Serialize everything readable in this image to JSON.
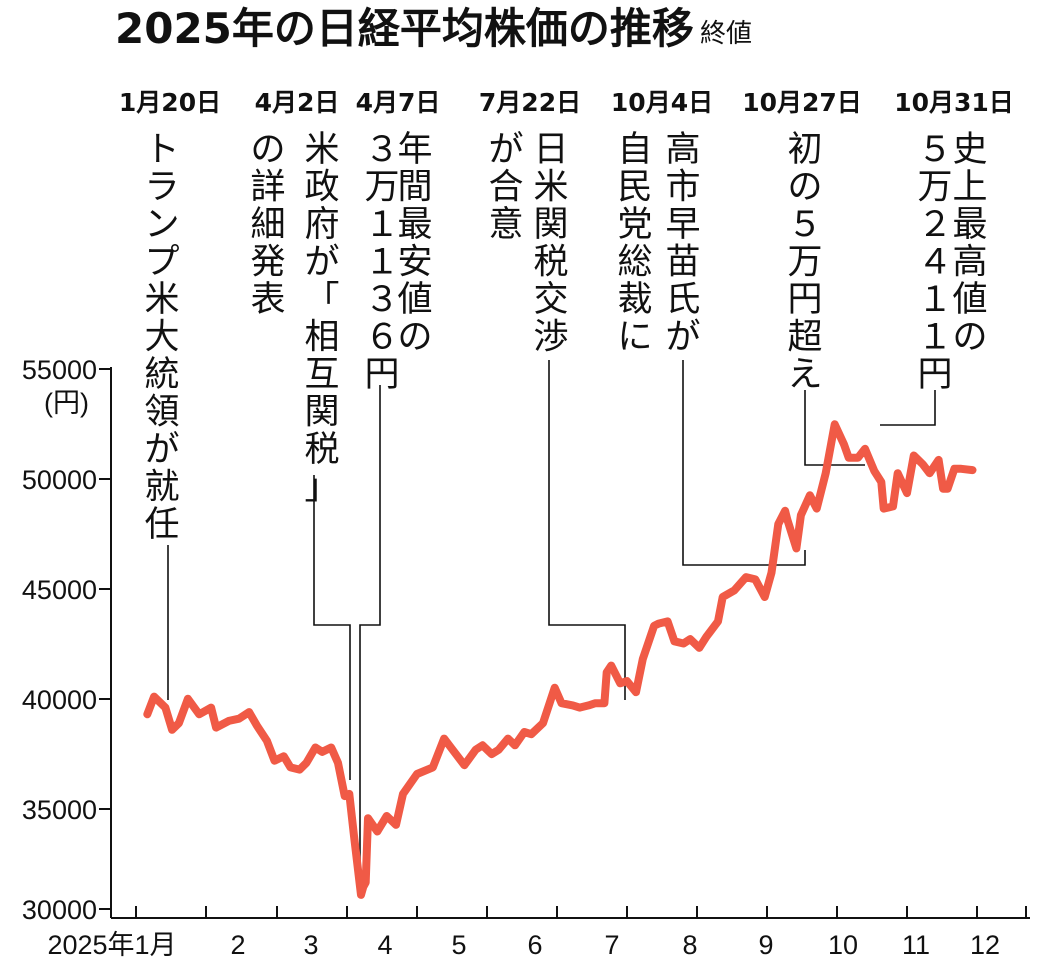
{
  "chart_data": {
    "type": "line",
    "title": "2025年の日経平均株価の推移",
    "subtitle": "終値",
    "unit": "(円)",
    "ylim": [
      30000,
      55000
    ],
    "y_ticks": [
      "55000",
      "50000",
      "45000",
      "40000",
      "35000",
      "30000"
    ],
    "x_ticks": [
      "2025年1月",
      "2",
      "3",
      "4",
      "5",
      "6",
      "7",
      "8",
      "9",
      "10",
      "11",
      "12"
    ],
    "line_color": "#f05a46",
    "grid": false,
    "series": [
      {
        "values": [
          [
            "2025-01-06",
            39300
          ],
          [
            "2025-01-09",
            40100
          ],
          [
            "2025-01-14",
            39600
          ],
          [
            "2025-01-17",
            38600
          ],
          [
            "2025-01-20",
            38900
          ],
          [
            "2025-01-24",
            40000
          ],
          [
            "2025-01-29",
            39300
          ],
          [
            "2025-02-03",
            39600
          ],
          [
            "2025-02-05",
            38700
          ],
          [
            "2025-02-10",
            39000
          ],
          [
            "2025-02-14",
            39100
          ],
          [
            "2025-02-18",
            39400
          ],
          [
            "2025-02-21",
            38800
          ],
          [
            "2025-02-25",
            38100
          ],
          [
            "2025-02-28",
            37200
          ],
          [
            "2025-03-04",
            37400
          ],
          [
            "2025-03-07",
            36900
          ],
          [
            "2025-03-11",
            36800
          ],
          [
            "2025-03-14",
            37100
          ],
          [
            "2025-03-18",
            37800
          ],
          [
            "2025-03-21",
            37600
          ],
          [
            "2025-03-25",
            37800
          ],
          [
            "2025-03-28",
            37100
          ],
          [
            "2025-03-31",
            35600
          ],
          [
            "2025-04-02",
            35700
          ],
          [
            "2025-04-04",
            33800
          ],
          [
            "2025-04-07",
            31136
          ],
          [
            "2025-04-08",
            31500
          ],
          [
            "2025-04-09",
            31700
          ],
          [
            "2025-04-10",
            34600
          ],
          [
            "2025-04-14",
            34000
          ],
          [
            "2025-04-18",
            34700
          ],
          [
            "2025-04-22",
            34300
          ],
          [
            "2025-04-25",
            35700
          ],
          [
            "2025-05-01",
            36600
          ],
          [
            "2025-05-08",
            36900
          ],
          [
            "2025-05-13",
            38200
          ],
          [
            "2025-05-16",
            37800
          ],
          [
            "2025-05-22",
            37000
          ],
          [
            "2025-05-27",
            37700
          ],
          [
            "2025-05-30",
            37900
          ],
          [
            "2025-06-03",
            37500
          ],
          [
            "2025-06-06",
            37700
          ],
          [
            "2025-06-10",
            38200
          ],
          [
            "2025-06-13",
            37900
          ],
          [
            "2025-06-17",
            38500
          ],
          [
            "2025-06-20",
            38400
          ],
          [
            "2025-06-25",
            38900
          ],
          [
            "2025-06-30",
            40500
          ],
          [
            "2025-07-03",
            39800
          ],
          [
            "2025-07-08",
            39700
          ],
          [
            "2025-07-11",
            39600
          ],
          [
            "2025-07-15",
            39700
          ],
          [
            "2025-07-18",
            39800
          ],
          [
            "2025-07-22",
            39800
          ],
          [
            "2025-07-23",
            41200
          ],
          [
            "2025-07-25",
            41500
          ],
          [
            "2025-07-29",
            40700
          ],
          [
            "2025-08-01",
            40800
          ],
          [
            "2025-08-05",
            40300
          ],
          [
            "2025-08-08",
            41800
          ],
          [
            "2025-08-13",
            43300
          ],
          [
            "2025-08-15",
            43400
          ],
          [
            "2025-08-19",
            43500
          ],
          [
            "2025-08-22",
            42600
          ],
          [
            "2025-08-26",
            42500
          ],
          [
            "2025-08-29",
            42700
          ],
          [
            "2025-09-02",
            42300
          ],
          [
            "2025-09-05",
            42800
          ],
          [
            "2025-09-10",
            43500
          ],
          [
            "2025-09-12",
            44600
          ],
          [
            "2025-09-17",
            44900
          ],
          [
            "2025-09-22",
            45500
          ],
          [
            "2025-09-26",
            45400
          ],
          [
            "2025-09-30",
            44600
          ],
          [
            "2025-10-03",
            45700
          ],
          [
            "2025-10-06",
            47900
          ],
          [
            "2025-10-09",
            48500
          ],
          [
            "2025-10-10",
            48100
          ],
          [
            "2025-10-14",
            46800
          ],
          [
            "2025-10-16",
            48300
          ],
          [
            "2025-10-20",
            49200
          ],
          [
            "2025-10-23",
            48600
          ],
          [
            "2025-10-27",
            50200
          ],
          [
            "2025-10-29",
            51300
          ],
          [
            "2025-10-31",
            52411
          ],
          [
            "2025-11-04",
            51500
          ],
          [
            "2025-11-06",
            50900
          ],
          [
            "2025-11-10",
            50900
          ],
          [
            "2025-11-13",
            51300
          ],
          [
            "2025-11-17",
            50300
          ],
          [
            "2025-11-20",
            49800
          ],
          [
            "2025-11-21",
            48600
          ],
          [
            "2025-11-25",
            48700
          ],
          [
            "2025-11-27",
            50200
          ],
          [
            "2025-12-01",
            49300
          ],
          [
            "2025-12-04",
            51000
          ],
          [
            "2025-12-08",
            50600
          ],
          [
            "2025-12-11",
            50200
          ],
          [
            "2025-12-15",
            50800
          ],
          [
            "2025-12-17",
            49500
          ],
          [
            "2025-12-19",
            49500
          ],
          [
            "2025-12-22",
            50400
          ],
          [
            "2025-12-25",
            50400
          ],
          [
            "2025-12-30",
            50339
          ]
        ]
      }
    ],
    "annotations": [
      {
        "date_label": "1月20日",
        "lines": [
          "トランプ米大統領が就任"
        ],
        "date": "2025-01-20"
      },
      {
        "date_label": "4月2日",
        "lines": [
          "米政府が「相互関税」",
          "の詳細発表"
        ],
        "date": "2025-04-02"
      },
      {
        "date_label": "4月7日",
        "lines": [
          "年間最安値の",
          "３万１１３６円"
        ],
        "date": "2025-04-07"
      },
      {
        "date_label": "7月22日",
        "lines": [
          "日米関税交渉",
          "が合意"
        ],
        "date": "2025-07-22"
      },
      {
        "date_label": "10月4日",
        "lines": [
          "高市早苗氏が",
          "自民党総裁に"
        ],
        "date": "2025-10-04"
      },
      {
        "date_label": "10月27日",
        "lines": [
          "初の５万円超え"
        ],
        "date": "2025-10-27"
      },
      {
        "date_label": "10月31日",
        "lines": [
          "史上最高値の",
          "５万２４１１円"
        ],
        "date": "2025-10-31"
      }
    ]
  }
}
